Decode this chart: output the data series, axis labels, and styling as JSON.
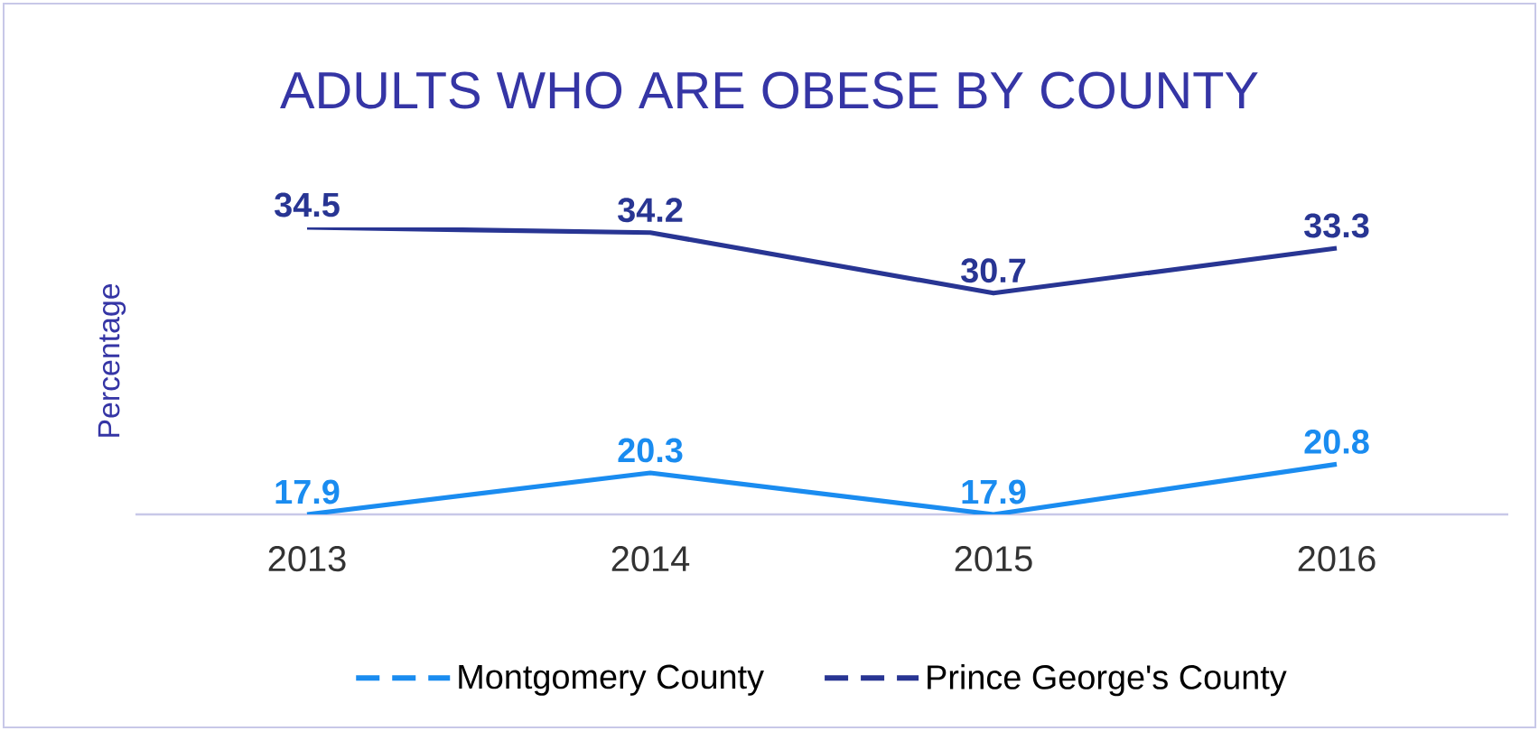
{
  "chart_data": {
    "type": "line",
    "title": "ADULTS WHO ARE OBESE BY COUNTY",
    "ylabel": "Percentage",
    "categories": [
      "2013",
      "2014",
      "2015",
      "2016"
    ],
    "series": [
      {
        "name": "Montgomery County",
        "color": "#1a8cf0",
        "values": [
          17.9,
          20.3,
          17.9,
          20.8
        ]
      },
      {
        "name": "Prince George's County",
        "color": "#283593",
        "values": [
          34.5,
          34.2,
          30.7,
          33.3
        ]
      }
    ],
    "data_labels": true,
    "legend": "bottom",
    "grid": false,
    "tick_labels": "x"
  }
}
